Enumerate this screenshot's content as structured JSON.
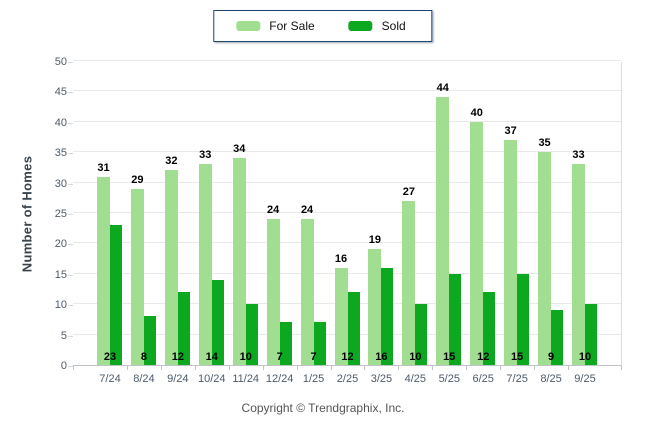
{
  "legend": {
    "items": [
      {
        "label": "For Sale",
        "color": "#A2DE92"
      },
      {
        "label": "Sold",
        "color": "#0CA81F"
      }
    ]
  },
  "footer": {
    "copyright": "Copyright © Trendgraphix, Inc."
  },
  "colors": {
    "for_sale": "#A2DE92",
    "sold": "#0CA81F",
    "grid": "#e7e9eb",
    "axis": "#bfc3c6",
    "tick_text": "#4d5b6a",
    "value_text": "#000000"
  },
  "chart_data": {
    "type": "bar",
    "title": "",
    "categories": [
      "7/24",
      "8/24",
      "9/24",
      "10/24",
      "11/24",
      "12/24",
      "1/25",
      "2/25",
      "3/25",
      "4/25",
      "5/25",
      "6/25",
      "7/25",
      "8/25",
      "9/25"
    ],
    "series": [
      {
        "name": "For Sale",
        "color": "#A2DE92",
        "values": [
          31,
          29,
          32,
          33,
          34,
          24,
          24,
          16,
          19,
          27,
          44,
          40,
          37,
          35,
          33
        ]
      },
      {
        "name": "Sold",
        "color": "#0CA81F",
        "values": [
          23,
          8,
          12,
          14,
          10,
          7,
          7,
          12,
          16,
          10,
          15,
          12,
          15,
          9,
          10
        ]
      }
    ],
    "xlabel": "",
    "ylabel": "Number of Homes",
    "ylim": [
      0,
      50
    ],
    "ytick_step": 5,
    "grid": true,
    "legend_position": "top-center",
    "value_labels": {
      "for_sale": "above bar",
      "sold": "inside bar bottom"
    }
  }
}
